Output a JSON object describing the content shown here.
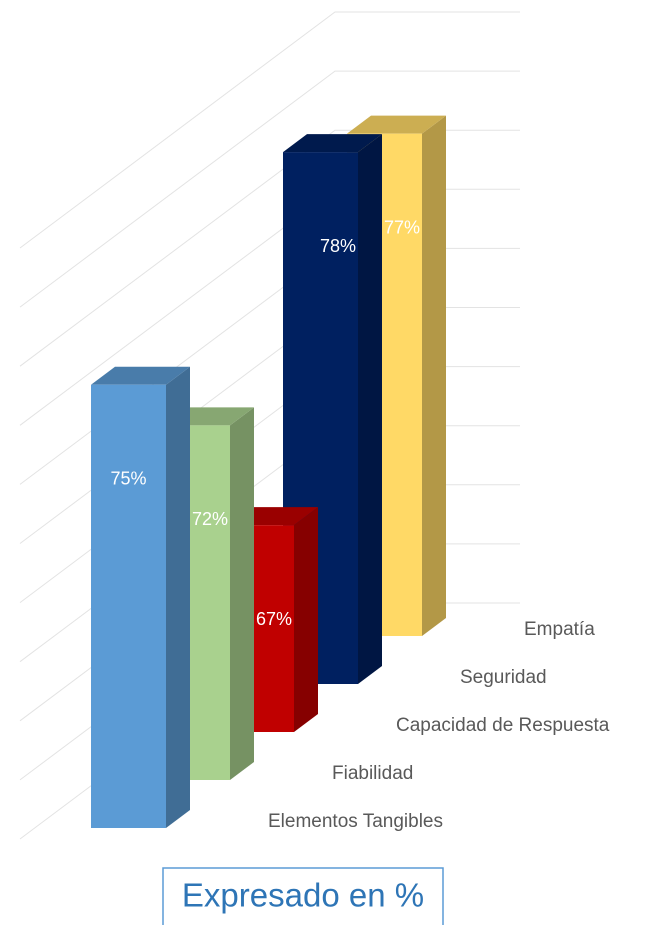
{
  "chart_data": {
    "type": "bar",
    "categories": [
      "Elementos Tangibles",
      "Fiabilidad",
      "Capacidad de Respuesta",
      "Seguridad",
      "Empatía"
    ],
    "values": [
      75,
      72,
      67,
      78,
      77
    ],
    "value_labels": [
      "75%",
      "72%",
      "67%",
      "78%",
      "77%"
    ],
    "colors": [
      "#5b9bd5",
      "#a9d18e",
      "#c00000",
      "#002060",
      "#ffd966"
    ],
    "ylim": [
      60,
      80
    ],
    "yticks": [
      60,
      62,
      64,
      66,
      68,
      70,
      72,
      74,
      76,
      78,
      80
    ],
    "grid": true,
    "annotation": "Expresado en %"
  }
}
